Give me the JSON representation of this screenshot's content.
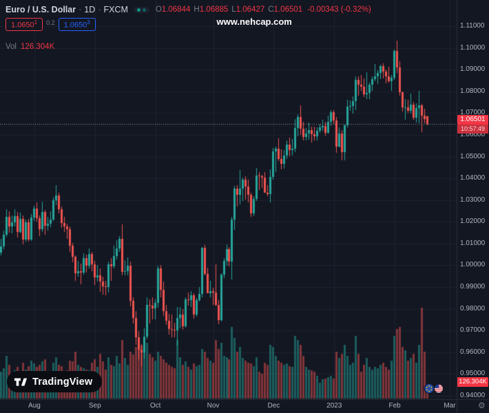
{
  "header": {
    "symbol": "Euro / U.S. Dollar",
    "sep": "·",
    "interval": "1D",
    "exchange": "FXCM",
    "ohlc": {
      "o_label": "O",
      "o": "1.06844",
      "h_label": "H",
      "h": "1.06885",
      "l_label": "L",
      "l": "1.06427",
      "c_label": "C",
      "c": "1.06501",
      "change": "-0.00343 (-0.32%)"
    },
    "bid": {
      "main": "1.0650",
      "sup": "1"
    },
    "spread": "0.2",
    "ask": {
      "main": "1.0650",
      "sup": "3"
    },
    "vol_label": "Vol",
    "vol_value": "126.304K"
  },
  "watermark": "www.nehcap.com",
  "logo": {
    "text": "TradingView"
  },
  "price_axis": {
    "ticks": [
      {
        "v": 1.11,
        "label": "1.11000"
      },
      {
        "v": 1.1,
        "label": "1.10000"
      },
      {
        "v": 1.09,
        "label": "1.09000"
      },
      {
        "v": 1.08,
        "label": "1.08000"
      },
      {
        "v": 1.07,
        "label": "1.07000"
      },
      {
        "v": 1.06,
        "label": "1.06000"
      },
      {
        "v": 1.05,
        "label": "1.05000"
      },
      {
        "v": 1.04,
        "label": "1.04000"
      },
      {
        "v": 1.03,
        "label": "1.03000"
      },
      {
        "v": 1.02,
        "label": "1.02000"
      },
      {
        "v": 1.01,
        "label": "1.01000"
      },
      {
        "v": 1.0,
        "label": "1.00000"
      },
      {
        "v": 0.99,
        "label": "0.99000"
      },
      {
        "v": 0.98,
        "label": "0.98000"
      },
      {
        "v": 0.97,
        "label": "0.97000"
      },
      {
        "v": 0.96,
        "label": "0.96000"
      },
      {
        "v": 0.95,
        "label": "0.95000"
      },
      {
        "v": 0.94,
        "label": "0.94000"
      }
    ],
    "last_price_label": "1.06501",
    "countdown": "10:57:49",
    "volume_axis_label": "126.304K"
  },
  "colors": {
    "bg": "#131722",
    "grid": "#1e2230",
    "border": "#2a2e39",
    "up": "#26a69a",
    "down": "#ef5350",
    "volume_up": "rgba(38,166,154,0.5)",
    "volume_down": "rgba(239,83,80,0.5)",
    "last_price_line": "#9598a1",
    "label_red": "#f23645",
    "ask_blue": "#2962ff",
    "axis_text": "#b2b5be",
    "title_text": "#d1d4dc",
    "muted_text": "#787b86"
  },
  "chart_data": {
    "type": "candlestick",
    "title": "Euro / U.S. Dollar 1D FXCM",
    "price_range": [
      0.94,
      1.11
    ],
    "last_price": 1.06501,
    "volume_max_k": 810,
    "total_slots": 166,
    "month_ticks": [
      {
        "slot": 12,
        "label": "Aug"
      },
      {
        "slot": 34,
        "label": "Sep"
      },
      {
        "slot": 56,
        "label": "Oct"
      },
      {
        "slot": 77,
        "label": "Nov"
      },
      {
        "slot": 99,
        "label": "Dec"
      },
      {
        "slot": 121,
        "label": "2023"
      },
      {
        "slot": 143,
        "label": "Feb"
      },
      {
        "slot": 163,
        "label": "Mar"
      }
    ],
    "columns": [
      "open",
      "high",
      "low",
      "close",
      "volume_k"
    ],
    "candles": [
      [
        1.006,
        1.0122,
        1.0047,
        1.0086,
        240
      ],
      [
        1.0086,
        1.016,
        1.0073,
        1.0142,
        270
      ],
      [
        1.0142,
        1.0257,
        1.0131,
        1.0224,
        380
      ],
      [
        1.0224,
        1.025,
        1.0151,
        1.0179,
        300
      ],
      [
        1.0179,
        1.0229,
        1.0147,
        1.0199,
        220
      ],
      [
        1.0199,
        1.0258,
        1.018,
        1.0225,
        250
      ],
      [
        1.0225,
        1.0246,
        1.0128,
        1.0154,
        280
      ],
      [
        1.0154,
        1.0241,
        1.0146,
        1.0213,
        230
      ],
      [
        1.0213,
        1.0228,
        1.0097,
        1.0118,
        320
      ],
      [
        1.0118,
        1.0211,
        1.011,
        1.0198,
        260
      ],
      [
        1.0198,
        1.0215,
        1.0109,
        1.012,
        290
      ],
      [
        1.012,
        1.0236,
        1.0112,
        1.0221,
        340
      ],
      [
        1.0221,
        1.0274,
        1.0203,
        1.026,
        310
      ],
      [
        1.026,
        1.0288,
        1.0202,
        1.0216,
        280
      ],
      [
        1.0216,
        1.023,
        1.0133,
        1.0165,
        300
      ],
      [
        1.0165,
        1.0294,
        1.0155,
        1.0246,
        330
      ],
      [
        1.0246,
        1.0254,
        1.0142,
        1.0183,
        350
      ],
      [
        1.0183,
        1.0222,
        1.0161,
        1.0193,
        210
      ],
      [
        1.0193,
        1.0249,
        1.0175,
        1.0211,
        230
      ],
      [
        1.0211,
        1.0313,
        1.0203,
        1.0298,
        320
      ],
      [
        1.0298,
        1.0368,
        1.0277,
        1.032,
        370
      ],
      [
        1.032,
        1.0335,
        1.024,
        1.0258,
        300
      ],
      [
        1.0258,
        1.0269,
        1.0171,
        1.0194,
        290
      ],
      [
        1.0194,
        1.0222,
        1.0154,
        1.0179,
        240
      ],
      [
        1.0179,
        1.0192,
        1.0122,
        1.0165,
        250
      ],
      [
        1.0165,
        1.0179,
        1.0062,
        1.009,
        340
      ],
      [
        1.009,
        1.0103,
        1.0013,
        1.004,
        330
      ],
      [
        1.004,
        1.0046,
        0.9928,
        0.9963,
        420
      ],
      [
        0.9963,
        1.0019,
        0.9947,
        0.9972,
        300
      ],
      [
        0.9972,
        1.0008,
        0.9914,
        0.9968,
        280
      ],
      [
        0.9968,
        1.0055,
        0.9958,
        1.0034,
        270
      ],
      [
        1.0034,
        1.0048,
        0.9966,
        0.9997,
        260
      ],
      [
        0.9997,
        1.0079,
        0.9985,
        1.0053,
        250
      ],
      [
        1.0053,
        1.0061,
        0.9972,
        1.0005,
        320
      ],
      [
        1.0005,
        1.0021,
        0.991,
        0.9945,
        350
      ],
      [
        0.9945,
        1.0002,
        0.9925,
        0.9953,
        280
      ],
      [
        0.9953,
        0.9986,
        0.9877,
        0.9925,
        400
      ],
      [
        0.9925,
        0.9949,
        0.9864,
        0.9904,
        330
      ],
      [
        0.9904,
        0.993,
        0.9863,
        0.9899,
        260
      ],
      [
        0.9899,
        1.0018,
        0.9875,
        1.0005,
        370
      ],
      [
        1.0005,
        1.0032,
        0.9929,
        0.9995,
        300
      ],
      [
        0.9995,
        1.009,
        0.9987,
        1.0043,
        290
      ],
      [
        1.0043,
        1.0115,
        1.0026,
        1.0078,
        380
      ],
      [
        1.0078,
        1.0135,
        1.0061,
        1.0122,
        310
      ],
      [
        1.0122,
        1.0187,
        0.9955,
        0.997,
        520
      ],
      [
        0.997,
        1.0023,
        0.9954,
        0.9972,
        360
      ],
      [
        0.9972,
        1.0036,
        0.9953,
        0.9999,
        300
      ],
      [
        0.9999,
        1.0017,
        0.9813,
        0.9838,
        420
      ],
      [
        0.9838,
        0.9852,
        0.9733,
        0.9759,
        390
      ],
      [
        0.9759,
        0.979,
        0.9635,
        0.9669,
        460
      ],
      [
        0.9669,
        0.9699,
        0.9569,
        0.9612,
        440
      ],
      [
        0.9612,
        0.9639,
        0.9536,
        0.9598,
        470
      ],
      [
        0.9598,
        0.9709,
        0.957,
        0.9673,
        460
      ],
      [
        0.9673,
        0.9853,
        0.9661,
        0.9818,
        500
      ],
      [
        0.9818,
        0.9844,
        0.9732,
        0.9814,
        400
      ],
      [
        0.9814,
        0.9852,
        0.9752,
        0.9802,
        370
      ],
      [
        0.9802,
        0.9844,
        0.9752,
        0.9826,
        340
      ],
      [
        0.9826,
        0.9999,
        0.9804,
        0.9987,
        420
      ],
      [
        0.9987,
        1.0,
        0.9852,
        0.9886,
        380
      ],
      [
        0.9886,
        0.9926,
        0.9768,
        0.979,
        350
      ],
      [
        0.979,
        0.9819,
        0.9727,
        0.9745,
        320
      ],
      [
        0.9745,
        0.9778,
        0.9682,
        0.9706,
        300
      ],
      [
        0.9706,
        0.9773,
        0.967,
        0.9704,
        280
      ],
      [
        0.9704,
        0.9737,
        0.9668,
        0.9702,
        270
      ],
      [
        0.9702,
        0.9807,
        0.9632,
        0.9757,
        520
      ],
      [
        0.9757,
        0.9808,
        0.9709,
        0.9773,
        370
      ],
      [
        0.9773,
        0.98,
        0.9704,
        0.9721,
        300
      ],
      [
        0.9721,
        0.9854,
        0.9712,
        0.9843,
        330
      ],
      [
        0.9843,
        0.9876,
        0.9815,
        0.984,
        280
      ],
      [
        0.984,
        0.988,
        0.9808,
        0.9861,
        260
      ],
      [
        0.9861,
        0.9871,
        0.9756,
        0.9772,
        310
      ],
      [
        0.9772,
        0.9851,
        0.9764,
        0.984,
        290
      ],
      [
        0.984,
        0.9899,
        0.9835,
        0.9867,
        300
      ],
      [
        0.9867,
        1.0084,
        0.9853,
        1.008,
        440
      ],
      [
        1.008,
        1.0094,
        0.9955,
        0.9961,
        420
      ],
      [
        0.9961,
        0.999,
        0.9872,
        0.9873,
        360
      ],
      [
        0.9873,
        0.9929,
        0.9852,
        0.9881,
        340
      ],
      [
        0.9881,
        0.9898,
        0.9817,
        0.9875,
        320
      ],
      [
        0.9875,
        1.0006,
        0.981,
        0.9817,
        520
      ],
      [
        0.9817,
        0.984,
        0.973,
        0.9748,
        440
      ],
      [
        0.9748,
        0.9965,
        0.9741,
        0.9957,
        500
      ],
      [
        0.9957,
        1.0034,
        0.9942,
        1.0021,
        380
      ],
      [
        1.0021,
        1.0096,
        0.9999,
        1.0074,
        370
      ],
      [
        1.0074,
        1.0085,
        0.9995,
        1.0016,
        350
      ],
      [
        1.0016,
        1.0222,
        0.9936,
        1.0209,
        640
      ],
      [
        1.0209,
        1.0364,
        1.0163,
        1.0354,
        540
      ],
      [
        1.0354,
        1.0368,
        1.0271,
        1.0325,
        420
      ],
      [
        1.0325,
        1.0438,
        1.0279,
        1.0353,
        460
      ],
      [
        1.0353,
        1.0402,
        1.0296,
        1.0393,
        360
      ],
      [
        1.0393,
        1.041,
        1.0301,
        1.0362,
        340
      ],
      [
        1.0362,
        1.0395,
        1.029,
        1.0324,
        320
      ],
      [
        1.0324,
        1.0335,
        1.0222,
        1.024,
        310
      ],
      [
        1.024,
        1.0319,
        1.0226,
        1.0305,
        290
      ],
      [
        1.0305,
        1.0448,
        1.0296,
        1.0413,
        370
      ],
      [
        1.0413,
        1.043,
        1.0347,
        1.0409,
        240
      ],
      [
        1.0409,
        1.0416,
        1.0355,
        1.0402,
        220
      ],
      [
        1.0402,
        1.0429,
        1.0333,
        1.0335,
        320
      ],
      [
        1.0335,
        1.0369,
        1.0319,
        1.0329,
        300
      ],
      [
        1.0329,
        1.044,
        1.029,
        1.0407,
        480
      ],
      [
        1.0407,
        1.054,
        1.0393,
        1.0524,
        460
      ],
      [
        1.0524,
        1.0546,
        1.0428,
        1.0537,
        380
      ],
      [
        1.0537,
        1.0585,
        1.048,
        1.049,
        340
      ],
      [
        1.049,
        1.0533,
        1.0443,
        1.0467,
        320
      ],
      [
        1.0467,
        1.0529,
        1.0444,
        1.0506,
        300
      ],
      [
        1.0506,
        1.0574,
        1.0489,
        1.0556,
        310
      ],
      [
        1.0556,
        1.0588,
        1.0503,
        1.0531,
        290
      ],
      [
        1.0531,
        1.058,
        1.0506,
        1.0536,
        280
      ],
      [
        1.0536,
        1.0673,
        1.0522,
        1.0631,
        560
      ],
      [
        1.0631,
        1.0695,
        1.0593,
        1.0683,
        520
      ],
      [
        1.0683,
        1.0735,
        1.0599,
        1.0627,
        480
      ],
      [
        1.0627,
        1.066,
        1.0575,
        1.0591,
        380
      ],
      [
        1.0591,
        1.063,
        1.0574,
        1.0607,
        280
      ],
      [
        1.0607,
        1.0658,
        1.0577,
        1.0622,
        260
      ],
      [
        1.0622,
        1.0638,
        1.0566,
        1.0604,
        250
      ],
      [
        1.0604,
        1.0637,
        1.0573,
        1.0594,
        240
      ],
      [
        1.0594,
        1.0636,
        1.0575,
        1.0618,
        200
      ],
      [
        1.0618,
        1.065,
        1.0608,
        1.0636,
        140
      ],
      [
        1.0636,
        1.067,
        1.0619,
        1.0641,
        170
      ],
      [
        1.0641,
        1.0659,
        1.0597,
        1.061,
        180
      ],
      [
        1.061,
        1.069,
        1.0605,
        1.0661,
        190
      ],
      [
        1.0661,
        1.0713,
        1.0642,
        1.0705,
        200
      ],
      [
        1.0705,
        1.0714,
        1.065,
        1.0665,
        180
      ],
      [
        1.0665,
        1.0683,
        1.0519,
        1.0545,
        420
      ],
      [
        1.0545,
        1.0635,
        1.0542,
        1.0605,
        360
      ],
      [
        1.0605,
        1.0621,
        1.0483,
        1.0522,
        400
      ],
      [
        1.0522,
        1.0648,
        1.0484,
        1.0643,
        480
      ],
      [
        1.0643,
        1.076,
        1.0634,
        1.073,
        380
      ],
      [
        1.073,
        1.0759,
        1.0711,
        1.0734,
        300
      ],
      [
        1.0734,
        1.0776,
        1.0697,
        1.0756,
        320
      ],
      [
        1.0756,
        1.0868,
        1.0714,
        1.0853,
        560
      ],
      [
        1.0853,
        1.0869,
        1.078,
        1.083,
        400
      ],
      [
        1.083,
        1.0874,
        1.0802,
        1.0822,
        240
      ],
      [
        1.0822,
        1.086,
        1.0775,
        1.0787,
        300
      ],
      [
        1.0787,
        1.0887,
        1.0766,
        1.0794,
        360
      ],
      [
        1.0794,
        1.084,
        1.0766,
        1.0832,
        280
      ],
      [
        1.0832,
        1.0868,
        1.0803,
        1.0856,
        260
      ],
      [
        1.0856,
        1.0927,
        1.0848,
        1.087,
        280
      ],
      [
        1.087,
        1.0898,
        1.0835,
        1.0886,
        270
      ],
      [
        1.0886,
        1.0923,
        1.0857,
        1.0916,
        300
      ],
      [
        1.0916,
        1.093,
        1.0858,
        1.0891,
        320
      ],
      [
        1.0891,
        1.09,
        1.0837,
        1.0868,
        280
      ],
      [
        1.0868,
        1.0913,
        1.084,
        1.0848,
        260
      ],
      [
        1.0848,
        1.0874,
        1.0802,
        1.0863,
        340
      ],
      [
        1.0863,
        1.0993,
        1.0852,
        1.0987,
        560
      ],
      [
        1.0987,
        1.1033,
        1.0885,
        1.0911,
        620
      ],
      [
        1.0911,
        1.094,
        1.0781,
        1.0795,
        640
      ],
      [
        1.0795,
        1.0798,
        1.0709,
        1.0725,
        460
      ],
      [
        1.0725,
        1.0766,
        1.0669,
        1.0727,
        430
      ],
      [
        1.0727,
        1.076,
        1.0701,
        1.0711,
        340
      ],
      [
        1.0711,
        1.0791,
        1.0697,
        1.0738,
        360
      ],
      [
        1.0738,
        1.0753,
        1.0668,
        1.0679,
        400
      ],
      [
        1.0679,
        1.0745,
        1.0656,
        1.0723,
        320
      ],
      [
        1.0723,
        1.0804,
        1.0655,
        1.0736,
        480
      ],
      [
        1.0736,
        1.0743,
        1.0611,
        1.0688,
        810
      ],
      [
        1.0688,
        1.0721,
        1.0655,
        1.0673,
        420
      ],
      [
        1.06844,
        1.06885,
        1.06427,
        1.06501,
        126.304
      ]
    ]
  }
}
